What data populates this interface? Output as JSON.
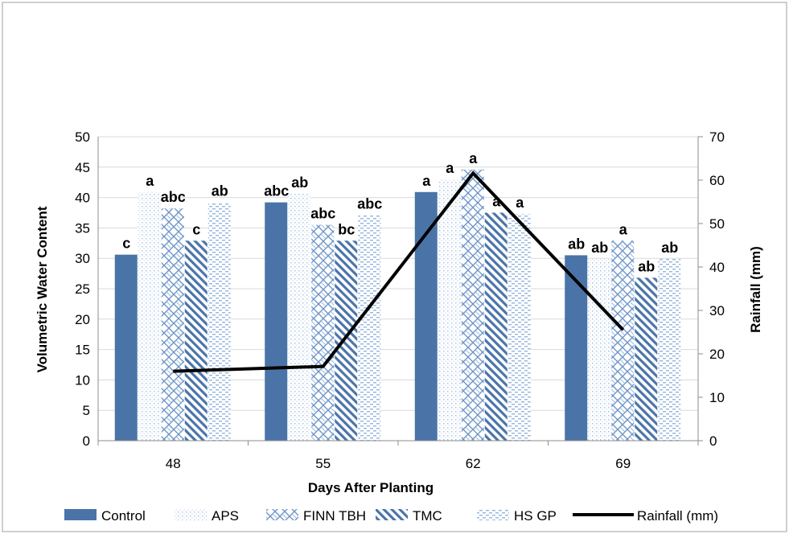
{
  "chart_data": {
    "type": "bar",
    "categories": [
      "48",
      "55",
      "62",
      "69"
    ],
    "xlabel": "Days After Planting",
    "ylabel": "Volumetric Water Content",
    "y2label": "Rainfall (mm)",
    "ylim": [
      0,
      50
    ],
    "y2lim": [
      0,
      70
    ],
    "yticks": [
      "0",
      "5",
      "10",
      "15",
      "20",
      "25",
      "30",
      "35",
      "40",
      "45",
      "50"
    ],
    "y2ticks": [
      "0",
      "10",
      "20",
      "30",
      "40",
      "50",
      "60",
      "70"
    ],
    "grid": true,
    "legend_position": "bottom",
    "series": [
      {
        "name": "Control",
        "pattern": "solid",
        "values": [
          30.6,
          39.2,
          40.9,
          30.5
        ],
        "labels": [
          "c",
          "abc",
          "a",
          "ab"
        ]
      },
      {
        "name": "APS",
        "pattern": "dots",
        "values": [
          40.9,
          40.6,
          43.0,
          29.9
        ],
        "labels": [
          "a",
          "ab",
          "a",
          "ab"
        ]
      },
      {
        "name": "FINN TBH",
        "pattern": "brick",
        "values": [
          38.2,
          35.5,
          44.6,
          32.9
        ],
        "labels": [
          "abc",
          "abc",
          "a",
          "a"
        ]
      },
      {
        "name": "TMC",
        "pattern": "diagonal",
        "values": [
          32.9,
          32.9,
          37.5,
          26.8
        ],
        "labels": [
          "c",
          "bc",
          "a",
          "ab"
        ]
      },
      {
        "name": "HS GP",
        "pattern": "dashes",
        "values": [
          39.2,
          37.1,
          37.3,
          29.9
        ],
        "labels": [
          "ab",
          "abc",
          "a",
          "ab"
        ]
      }
    ],
    "line_series": {
      "name": "Rainfall (mm)",
      "axis": "right",
      "values": [
        16.0,
        17.1,
        61.6,
        25.5
      ]
    },
    "colors": {
      "bar": "#4a74a8",
      "pattern_light": "#a9c4e4",
      "line": "#000000",
      "grid": "#d9d9d9",
      "border": "#bfbfbf"
    }
  }
}
